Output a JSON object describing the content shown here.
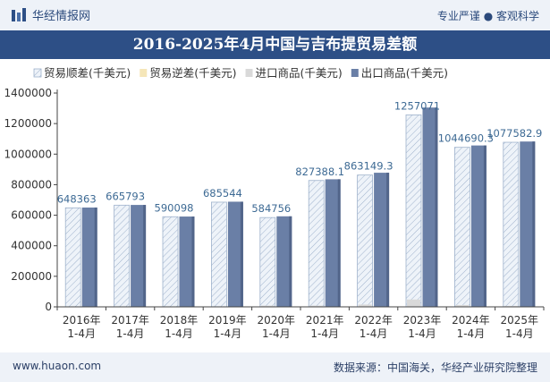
{
  "header": {
    "brand": "华经情报网",
    "tagline": "专业严谨 ● 客观科学"
  },
  "footer": {
    "site": "www.huaon.com",
    "source": "数据来源：中国海关，华经产业研究院整理"
  },
  "chart_data": {
    "type": "bar",
    "title": "2016-2025年4月中国与吉布提贸易差额",
    "categories": [
      [
        "2016年",
        "1-4月"
      ],
      [
        "2017年",
        "1-4月"
      ],
      [
        "2018年",
        "1-4月"
      ],
      [
        "2019年",
        "1-4月"
      ],
      [
        "2020年",
        "1-4月"
      ],
      [
        "2021年",
        "1-4月"
      ],
      [
        "2022年",
        "1-4月"
      ],
      [
        "2023年",
        "1-4月"
      ],
      [
        "2024年",
        "1-4月"
      ],
      [
        "2025年",
        "1-4月"
      ]
    ],
    "series": [
      {
        "name": "贸易顺差(千美元)",
        "color": "#eaf0f7",
        "pattern": "hatch",
        "values": [
          648363,
          665793,
          590098,
          685544,
          584756,
          827388.1,
          863149.3,
          1257071,
          1044690.3,
          1077582.9
        ]
      },
      {
        "name": "贸易逆差(千美元)",
        "color": "#f5e6b8",
        "values": [
          0,
          0,
          0,
          0,
          0,
          0,
          0,
          0,
          0,
          0
        ]
      },
      {
        "name": "进口商品(千美元)",
        "color": "#d9d9d9",
        "values": [
          2000,
          1500,
          1200,
          3000,
          8000,
          8000,
          15000,
          48000,
          12000,
          5000
        ]
      },
      {
        "name": "出口商品(千美元)",
        "color": "#6a7fa6",
        "values": [
          650363,
          667293,
          591298,
          688544,
          592756,
          835388.1,
          878149.3,
          1305071,
          1056690.3,
          1082582.9
        ]
      }
    ],
    "data_labels": [
      "648363",
      "665793",
      "590098",
      "685544",
      "584756",
      "827388.1",
      "863149.3",
      "1257071",
      "1044690.3",
      "1077582.9"
    ],
    "yticks": [
      "0",
      "200000",
      "400000",
      "600000",
      "800000",
      "1000000",
      "1200000",
      "1400000"
    ],
    "ylim": [
      0,
      1400000
    ],
    "legend_position": "top",
    "grid": false
  }
}
